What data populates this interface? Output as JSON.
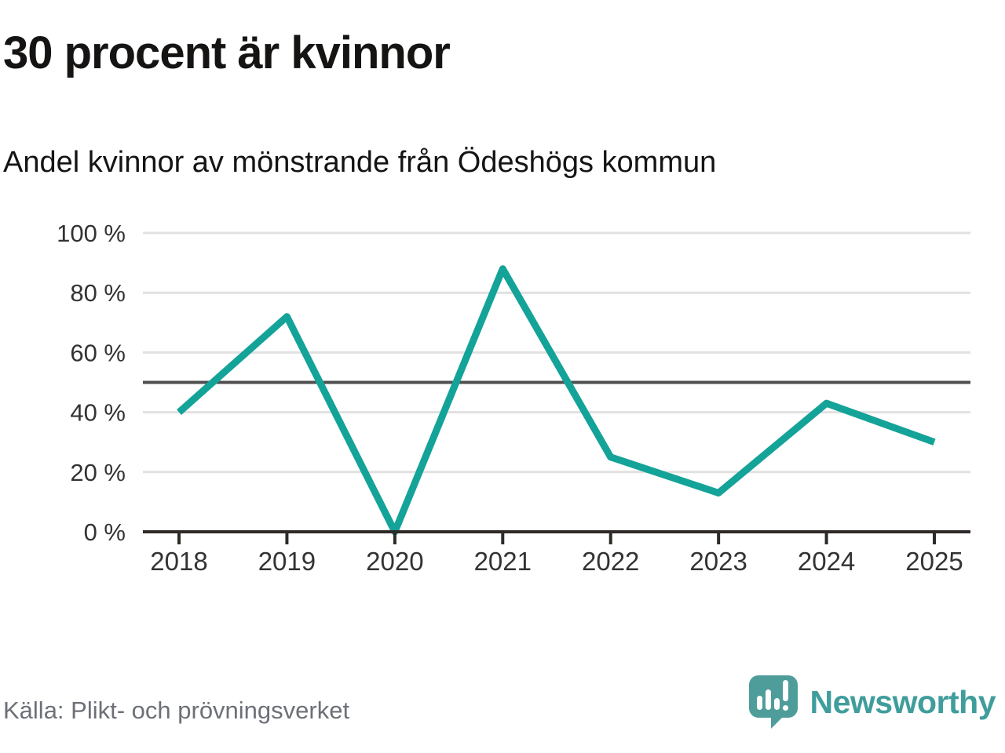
{
  "chart_data": {
    "type": "line",
    "title": "30 procent är kvinnor",
    "subtitle": "Andel kvinnor av mönstrande från Ödeshögs kommun",
    "source": "Källa: Plikt- och prövningsverket",
    "categories": [
      "2018",
      "2019",
      "2020",
      "2021",
      "2022",
      "2023",
      "2024",
      "2025"
    ],
    "values": [
      40,
      72,
      0,
      88,
      25,
      13,
      43,
      30
    ],
    "unit": "%",
    "ylim": [
      0,
      100
    ],
    "yticks": [
      0,
      20,
      40,
      60,
      80,
      100
    ],
    "ytick_suffix": " %",
    "reference_line": 50,
    "grid": true,
    "legend": "none",
    "colors": {
      "line": "#14a398",
      "grid": "#e1e1e1",
      "reference": "#4f4f4f",
      "axis": "#2d2a28",
      "tick_label": "#333333"
    }
  },
  "footer": {
    "brand": "Newsworthy",
    "logo_icon": "speech-bubble-bar-chart",
    "logo_colors": {
      "bubble": "#4f9d9a",
      "bars": "#ffffff"
    }
  }
}
